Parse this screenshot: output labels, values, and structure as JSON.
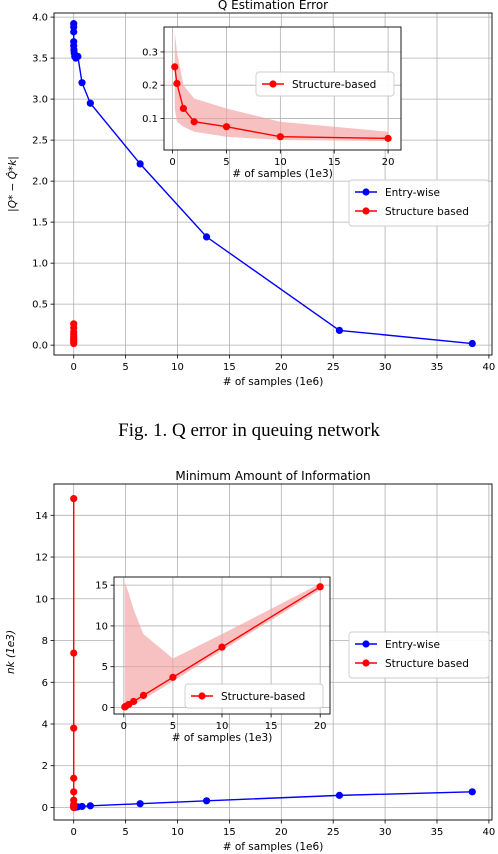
{
  "caption": "Fig. 1.    Q error in queuing network",
  "colors": {
    "entry": "#0000ff",
    "structure": "#ff0000",
    "band": "#f4a0a0",
    "grid": "#b0b0b0"
  },
  "chart_data": [
    {
      "id": "top-main",
      "type": "line",
      "title": "Q Estimation Error",
      "xlabel": "# of samples (1e6)",
      "ylabel": "|Q* − Q̂*k|",
      "xlim": [
        -1.9,
        40.3
      ],
      "ylim": [
        -0.12,
        4.05
      ],
      "xticks": [
        0,
        5,
        10,
        15,
        20,
        25,
        30,
        35,
        40
      ],
      "yticks": [
        0.0,
        0.5,
        1.0,
        1.5,
        2.0,
        2.5,
        3.0,
        3.5,
        4.0
      ],
      "ytick_labels": [
        "0.0",
        "0.5",
        "1.0",
        "1.5",
        "2.0",
        "2.5",
        "3.0",
        "3.5",
        "4.0"
      ],
      "grid": true,
      "legend": {
        "position": "right",
        "entries": [
          "Entry-wise",
          "Structure based"
        ]
      },
      "series": [
        {
          "name": "Entry-wise",
          "color": "#0000ff",
          "x": [
            0.0,
            0.0,
            0.0,
            0.0,
            0.0,
            0.02,
            0.05,
            0.1,
            0.2,
            0.4,
            0.8,
            1.6,
            6.4,
            12.8,
            25.6,
            38.4
          ],
          "y": [
            3.92,
            3.88,
            3.82,
            3.7,
            3.65,
            3.6,
            3.56,
            3.52,
            3.5,
            3.52,
            3.2,
            2.95,
            2.21,
            1.32,
            0.18,
            0.02
          ]
        },
        {
          "name": "Structure based",
          "color": "#ff0000",
          "x": [
            0.0,
            0.0,
            0.0,
            0.0,
            0.0,
            0.0,
            0.0,
            0.0,
            0.0
          ],
          "y": [
            0.26,
            0.21,
            0.16,
            0.13,
            0.1,
            0.08,
            0.06,
            0.04,
            0.02
          ]
        }
      ]
    },
    {
      "id": "top-inset",
      "type": "line",
      "xlabel": "# of samples (1e3)",
      "xlim": [
        -0.8,
        21.2
      ],
      "ylim": [
        0.005,
        0.375
      ],
      "xticks": [
        0,
        5,
        10,
        15,
        20
      ],
      "yticks": [
        0.1,
        0.2,
        0.3
      ],
      "ytick_labels": [
        "0.1",
        "0.2",
        "0.3"
      ],
      "grid": true,
      "legend": {
        "position": "center-right",
        "entries": [
          "Structure-based"
        ]
      },
      "series": [
        {
          "name": "Structure-based",
          "color": "#ff0000",
          "x": [
            0.2,
            0.4,
            1.0,
            2.0,
            5.0,
            10.0,
            20.0
          ],
          "y": [
            0.255,
            0.205,
            0.13,
            0.09,
            0.075,
            0.045,
            0.04
          ],
          "upper": [
            0.36,
            0.3,
            0.2,
            0.16,
            0.13,
            0.09,
            0.06
          ],
          "lower": [
            0.13,
            0.09,
            0.075,
            0.06,
            0.045,
            0.035,
            0.032
          ]
        }
      ]
    },
    {
      "id": "bottom-main",
      "type": "line",
      "title": "Minimum Amount of Information",
      "xlabel": "# of samples (1e6)",
      "ylabel": "nk (1e3)",
      "xlim": [
        -1.9,
        40.3
      ],
      "ylim": [
        -0.6,
        15.5
      ],
      "xticks": [
        0,
        5,
        10,
        15,
        20,
        25,
        30,
        35,
        40
      ],
      "yticks": [
        0,
        2,
        4,
        6,
        8,
        10,
        12,
        14
      ],
      "ytick_labels": [
        "0",
        "2",
        "4",
        "6",
        "8",
        "10",
        "12",
        "14"
      ],
      "grid": true,
      "legend": {
        "position": "right",
        "entries": [
          "Entry-wise",
          "Structure based"
        ]
      },
      "series": [
        {
          "name": "Entry-wise",
          "color": "#0000ff",
          "x": [
            0.0,
            0.05,
            0.1,
            0.2,
            0.4,
            0.8,
            1.6,
            6.4,
            12.8,
            25.6,
            38.4
          ],
          "y": [
            0.0,
            0.0,
            0.01,
            0.02,
            0.03,
            0.05,
            0.08,
            0.18,
            0.32,
            0.58,
            0.75
          ]
        },
        {
          "name": "Structure based",
          "color": "#ff0000",
          "x": [
            0.0,
            0.0,
            0.0,
            0.0,
            0.0,
            0.0,
            0.0,
            0.0,
            0.0,
            0.0
          ],
          "y": [
            14.8,
            7.4,
            3.8,
            1.4,
            0.75,
            0.35,
            0.15,
            0.08,
            0.03,
            0.0
          ]
        }
      ]
    },
    {
      "id": "bottom-inset",
      "type": "line",
      "xlabel": "# of samples (1e3)",
      "xlim": [
        -1.0,
        21.0
      ],
      "ylim": [
        -0.8,
        16.0
      ],
      "xticks": [
        0,
        5,
        10,
        15,
        20
      ],
      "yticks": [
        0,
        5,
        10,
        15
      ],
      "ytick_labels": [
        "0",
        "5",
        "10",
        "15"
      ],
      "grid": true,
      "legend": {
        "position": "lower-right",
        "entries": [
          "Structure-based"
        ]
      },
      "series": [
        {
          "name": "Structure-based",
          "color": "#ff0000",
          "x": [
            0.1,
            0.2,
            0.5,
            1.0,
            2.0,
            5.0,
            10.0,
            20.0
          ],
          "y": [
            0.07,
            0.15,
            0.37,
            0.74,
            1.48,
            3.7,
            7.4,
            14.8
          ],
          "upper": [
            15.5,
            15.0,
            14.0,
            12.0,
            9.0,
            6.0,
            9.0,
            15.2
          ],
          "lower": [
            0.0,
            0.0,
            0.0,
            0.3,
            1.0,
            3.2,
            7.0,
            14.4
          ]
        }
      ]
    }
  ]
}
